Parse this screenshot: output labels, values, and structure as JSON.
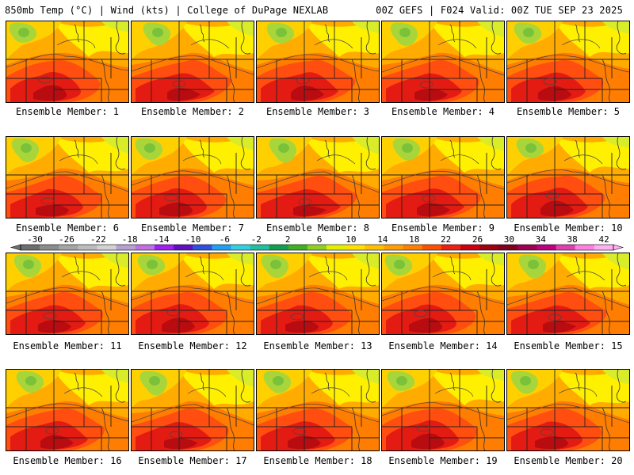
{
  "header": {
    "left_title": "850mb Temp (°C) | Wind (kts) | College of DuPage NEXLAB",
    "right_title": "00Z GEFS | F024 Valid: 00Z TUE SEP 23 2025"
  },
  "member_label_prefix": "Ensemble Member:",
  "members": [
    {
      "label": "Ensemble Member: 1"
    },
    {
      "label": "Ensemble Member: 2"
    },
    {
      "label": "Ensemble Member: 3"
    },
    {
      "label": "Ensemble Member: 4"
    },
    {
      "label": "Ensemble Member: 5"
    },
    {
      "label": "Ensemble Member: 6"
    },
    {
      "label": "Ensemble Member: 7"
    },
    {
      "label": "Ensemble Member: 8"
    },
    {
      "label": "Ensemble Member: 9"
    },
    {
      "label": "Ensemble Member: 10"
    },
    {
      "label": "Ensemble Member: 11"
    },
    {
      "label": "Ensemble Member: 12"
    },
    {
      "label": "Ensemble Member: 13"
    },
    {
      "label": "Ensemble Member: 14"
    },
    {
      "label": "Ensemble Member: 15"
    },
    {
      "label": "Ensemble Member: 16"
    },
    {
      "label": "Ensemble Member: 17"
    },
    {
      "label": "Ensemble Member: 18"
    },
    {
      "label": "Ensemble Member: 19"
    },
    {
      "label": "Ensemble Member: 20"
    }
  ],
  "colorbar": {
    "ticks": [
      "-30",
      "-26",
      "-22",
      "-18",
      "-14",
      "-10",
      "-6",
      "-2",
      "2",
      "6",
      "10",
      "14",
      "18",
      "22",
      "26",
      "30",
      "34",
      "38",
      "42"
    ],
    "colors": [
      "#6e6e6e",
      "#8c8c8c",
      "#a5a5a5",
      "#bcbcbc",
      "#d2d2d2",
      "#b7a0d2",
      "#c070e0",
      "#a020f0",
      "#6010c0",
      "#3050e0",
      "#20a0f0",
      "#30d0e0",
      "#20c0a0",
      "#10a050",
      "#40b020",
      "#90d020",
      "#e0f000",
      "#ffe000",
      "#ffc000",
      "#ffa000",
      "#ff8000",
      "#ff5000",
      "#f02010",
      "#d00010",
      "#a00010",
      "#800020",
      "#a00050",
      "#c00080",
      "#e040b0",
      "#ff80e0",
      "#ffb0f0"
    ]
  },
  "palette": {
    "green_dark": "#7ac23a",
    "green": "#a8d63a",
    "yellow_green": "#d8ec2a",
    "yellow": "#fff000",
    "yellow_orange": "#ffd000",
    "orange": "#ffab00",
    "dark_orange": "#ff7d00",
    "red_orange": "#ff4e10",
    "red": "#e41b12",
    "dark_red": "#b80c10"
  }
}
